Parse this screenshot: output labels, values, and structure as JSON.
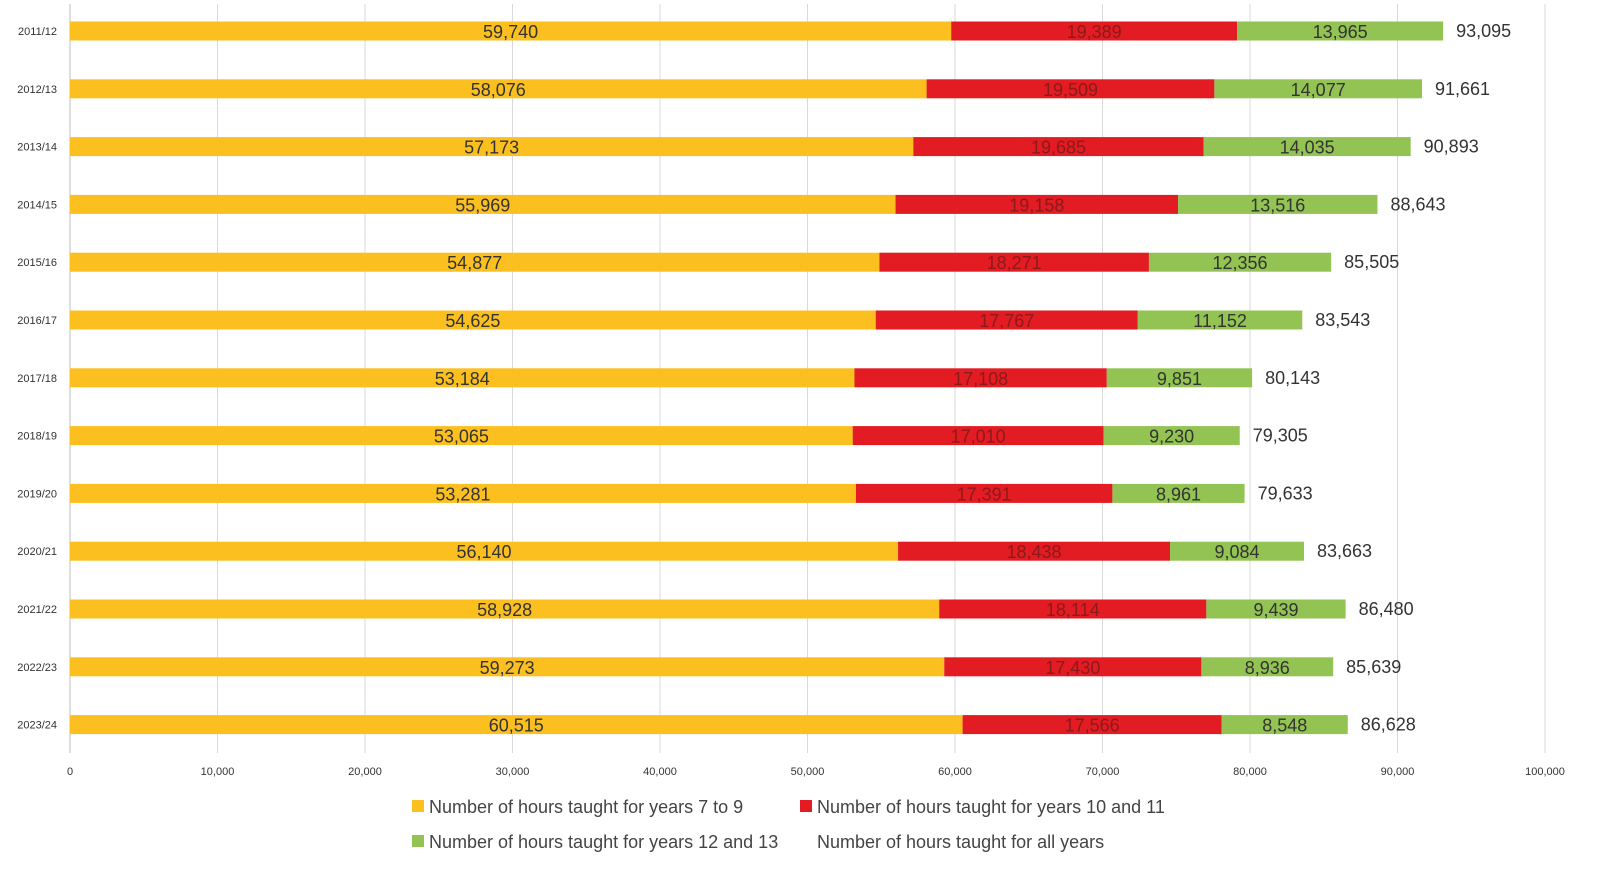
{
  "chart_data": {
    "type": "bar",
    "orientation": "horizontal",
    "stacked": true,
    "categories": [
      "2011/12",
      "2012/13",
      "2013/14",
      "2014/15",
      "2015/16",
      "2016/17",
      "2017/18",
      "2018/19",
      "2019/20",
      "2020/21",
      "2021/22",
      "2022/23",
      "2023/24"
    ],
    "series": [
      {
        "name": "Number of hours taught for years 7 to 9",
        "color": "#FBBF1F",
        "label_color": "#333333",
        "values": [
          59740,
          58076,
          57173,
          55969,
          54877,
          54625,
          53184,
          53065,
          53281,
          56140,
          58928,
          59273,
          60515
        ],
        "labels": [
          "59,740",
          "58,076",
          "57,173",
          "55,969",
          "54,877",
          "54,625",
          "53,184",
          "53,065",
          "53,281",
          "56,140",
          "58,928",
          "59,273",
          "60,515"
        ]
      },
      {
        "name": "Number of hours taught for years 10 and 11",
        "color": "#E31B23",
        "label_color": "#8B1A1A",
        "values": [
          19389,
          19509,
          19685,
          19158,
          18271,
          17767,
          17108,
          17010,
          17391,
          18438,
          18114,
          17430,
          17566
        ],
        "labels": [
          "19,389",
          "19,509",
          "19,685",
          "19,158",
          "18,271",
          "17,767",
          "17,108",
          "17,010",
          "17,391",
          "18,438",
          "18,114",
          "17,430",
          "17,566"
        ]
      },
      {
        "name": "Number of hours taught for years 12 and 13",
        "color": "#92C353",
        "label_color": "#333333",
        "values": [
          13965,
          14077,
          14035,
          13516,
          12356,
          11152,
          9851,
          9230,
          8961,
          9084,
          9439,
          8936,
          8548
        ],
        "labels": [
          "13,965",
          "14,077",
          "14,035",
          "13,516",
          "12,356",
          "11,152",
          "9,851",
          "9,230",
          "8,961",
          "9,084",
          "9,439",
          "8,936",
          "8,548"
        ]
      }
    ],
    "totals": {
      "name": "Number of hours taught for all years",
      "values": [
        93095,
        91661,
        90893,
        88643,
        85505,
        83543,
        80143,
        79305,
        79633,
        83663,
        86480,
        85639,
        86628
      ],
      "labels": [
        "93,095",
        "91,661",
        "90,893",
        "88,643",
        "85,505",
        "83,543",
        "80,143",
        "79,305",
        "79,633",
        "83,663",
        "86,480",
        "85,639",
        "86,628"
      ]
    },
    "xlim": [
      0,
      100000
    ],
    "xticks": [
      0,
      10000,
      20000,
      30000,
      40000,
      50000,
      60000,
      70000,
      80000,
      90000,
      100000
    ],
    "xtick_labels": [
      "0",
      "10,000",
      "20,000",
      "30,000",
      "40,000",
      "50,000",
      "60,000",
      "70,000",
      "80,000",
      "90,000",
      "100,000"
    ],
    "grid": true,
    "legend_position": "bottom",
    "title": "",
    "xlabel": "",
    "ylabel": ""
  }
}
